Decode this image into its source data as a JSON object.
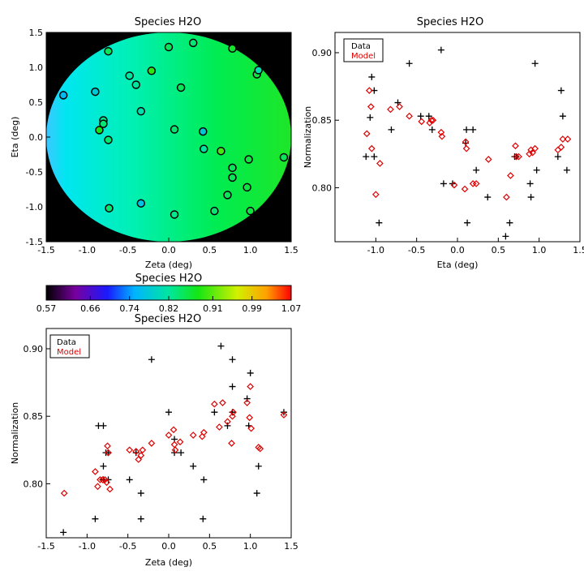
{
  "chart_data": [
    {
      "id": "map",
      "type": "heatmap",
      "title": "Species H2O",
      "xlabel": "Zeta (deg)",
      "ylabel": "Eta (deg)",
      "xlim": [
        -1.5,
        1.5
      ],
      "ylim": [
        -1.5,
        1.5
      ],
      "xticks": [
        "-1.5",
        "-1.0",
        "-0.5",
        "0.0",
        "0.5",
        "1.0",
        "1.5"
      ],
      "yticks": [
        "-1.5",
        "-1.0",
        "-0.5",
        "0.0",
        "0.5",
        "1.0",
        "1.5"
      ],
      "field_radius_deg": 1.5,
      "colorbar": {
        "min": 0.57,
        "max": 1.07,
        "ticks": [
          "0.57",
          "0.66",
          "0.74",
          "0.82",
          "0.91",
          "0.99",
          "1.07"
        ]
      },
      "points": [
        {
          "zeta": -1.29,
          "eta": 0.6,
          "value": 0.76
        },
        {
          "zeta": -0.9,
          "eta": 0.65,
          "value": 0.78
        },
        {
          "zeta": -0.74,
          "eta": 1.23,
          "value": 0.85
        },
        {
          "zeta": -0.8,
          "eta": 0.24,
          "value": 0.83
        },
        {
          "zeta": -0.8,
          "eta": 0.19,
          "value": 0.84
        },
        {
          "zeta": -0.85,
          "eta": 0.1,
          "value": 0.88
        },
        {
          "zeta": -0.74,
          "eta": -0.04,
          "value": 0.84
        },
        {
          "zeta": -0.73,
          "eta": -1.02,
          "value": 0.84
        },
        {
          "zeta": -0.48,
          "eta": 0.88,
          "value": 0.82
        },
        {
          "zeta": -0.4,
          "eta": 0.75,
          "value": 0.82
        },
        {
          "zeta": -0.34,
          "eta": 0.37,
          "value": 0.81
        },
        {
          "zeta": -0.34,
          "eta": -0.95,
          "value": 0.77
        },
        {
          "zeta": -0.21,
          "eta": 0.95,
          "value": 0.89
        },
        {
          "zeta": 0.0,
          "eta": 1.29,
          "value": 0.85
        },
        {
          "zeta": 0.07,
          "eta": 0.11,
          "value": 0.84
        },
        {
          "zeta": 0.07,
          "eta": -1.11,
          "value": 0.83
        },
        {
          "zeta": 0.15,
          "eta": 0.71,
          "value": 0.85
        },
        {
          "zeta": 0.3,
          "eta": 1.35,
          "value": 0.84
        },
        {
          "zeta": 0.42,
          "eta": 0.08,
          "value": 0.78
        },
        {
          "zeta": 0.43,
          "eta": -0.17,
          "value": 0.82
        },
        {
          "zeta": 0.56,
          "eta": -1.06,
          "value": 0.84
        },
        {
          "zeta": 0.64,
          "eta": -0.2,
          "value": 0.9
        },
        {
          "zeta": 0.78,
          "eta": 1.27,
          "value": 0.87
        },
        {
          "zeta": 0.72,
          "eta": -0.83,
          "value": 0.85
        },
        {
          "zeta": 0.78,
          "eta": -0.44,
          "value": 0.85
        },
        {
          "zeta": 0.78,
          "eta": -0.58,
          "value": 0.85
        },
        {
          "zeta": 0.96,
          "eta": -0.72,
          "value": 0.86
        },
        {
          "zeta": 0.98,
          "eta": -0.32,
          "value": 0.86
        },
        {
          "zeta": 1.0,
          "eta": -1.06,
          "value": 0.86
        },
        {
          "zeta": 1.08,
          "eta": 0.9,
          "value": 0.86
        },
        {
          "zeta": 1.1,
          "eta": 0.96,
          "value": 0.81
        },
        {
          "zeta": 1.41,
          "eta": -0.29,
          "value": 0.85
        }
      ]
    },
    {
      "id": "eta",
      "type": "scatter",
      "title": "Species H2O",
      "xlabel": "Eta (deg)",
      "ylabel": "Normalization",
      "xlim": [
        -1.5,
        1.5
      ],
      "ylim": [
        0.76,
        0.915
      ],
      "xticks": [
        "-1.0",
        "-0.5",
        "0.0",
        "0.5",
        "1.0",
        "1.5"
      ],
      "yticks": [
        "0.80",
        "0.85",
        "0.90"
      ],
      "legend": {
        "data": "Data",
        "model": "Model"
      },
      "series": [
        {
          "name": "Data",
          "marker": "plus",
          "x": [
            -1.12,
            -1.07,
            -1.05,
            -1.02,
            -1.02,
            -0.96,
            -0.81,
            -0.73,
            -0.59,
            -0.45,
            -0.35,
            -0.31,
            -0.2,
            -0.17,
            -0.06,
            0.11,
            0.12,
            0.1,
            0.19,
            0.23,
            0.37,
            0.59,
            0.64,
            0.7,
            0.72,
            0.89,
            0.9,
            0.95,
            0.97,
            1.23,
            1.27,
            1.29,
            1.34
          ],
          "y": [
            0.823,
            0.852,
            0.882,
            0.872,
            0.823,
            0.774,
            0.843,
            0.863,
            0.892,
            0.853,
            0.853,
            0.843,
            0.902,
            0.803,
            0.803,
            0.843,
            0.774,
            0.833,
            0.843,
            0.813,
            0.793,
            0.764,
            0.774,
            0.823,
            0.823,
            0.803,
            0.793,
            0.892,
            0.813,
            0.823,
            0.872,
            0.853,
            0.813
          ]
        },
        {
          "name": "Model",
          "marker": "diamond",
          "x": [
            -1.11,
            -1.08,
            -1.06,
            -1.05,
            -1.0,
            -0.95,
            -0.82,
            -0.71,
            -0.59,
            -0.44,
            -0.34,
            -0.32,
            -0.3,
            -0.2,
            -0.19,
            -0.04,
            0.09,
            0.1,
            0.11,
            0.19,
            0.23,
            0.38,
            0.6,
            0.65,
            0.71,
            0.72,
            0.75,
            0.88,
            0.9,
            0.92,
            0.95,
            1.23,
            1.27,
            1.29,
            1.35
          ],
          "y": [
            0.84,
            0.872,
            0.86,
            0.829,
            0.795,
            0.818,
            0.858,
            0.86,
            0.853,
            0.849,
            0.848,
            0.85,
            0.85,
            0.841,
            0.838,
            0.802,
            0.799,
            0.834,
            0.829,
            0.803,
            0.803,
            0.821,
            0.793,
            0.809,
            0.831,
            0.823,
            0.823,
            0.825,
            0.828,
            0.826,
            0.829,
            0.828,
            0.83,
            0.836,
            0.836
          ]
        }
      ]
    },
    {
      "id": "zeta",
      "type": "scatter",
      "title": "Species H2O",
      "xlabel": "Zeta (deg)",
      "ylabel": "Normalization",
      "xlim": [
        -1.5,
        1.5
      ],
      "ylim": [
        0.76,
        0.915
      ],
      "xticks": [
        "-1.5",
        "-1.0",
        "-0.5",
        "0.0",
        "0.5",
        "1.0",
        "1.5"
      ],
      "yticks": [
        "0.80",
        "0.85",
        "0.90"
      ],
      "legend": {
        "data": "Data",
        "model": "Model"
      },
      "series": [
        {
          "name": "Data",
          "marker": "plus",
          "x": [
            -1.29,
            -0.9,
            -0.86,
            -0.8,
            -0.8,
            -0.8,
            -0.77,
            -0.74,
            -0.74,
            -0.48,
            -0.4,
            -0.34,
            -0.34,
            -0.21,
            0.0,
            0.07,
            0.07,
            0.15,
            0.3,
            0.42,
            0.43,
            0.56,
            0.64,
            0.72,
            0.78,
            0.78,
            0.78,
            0.96,
            0.98,
            1.0,
            1.08,
            1.1,
            1.41
          ],
          "y": [
            0.764,
            0.774,
            0.843,
            0.843,
            0.803,
            0.813,
            0.823,
            0.823,
            0.803,
            0.803,
            0.823,
            0.774,
            0.793,
            0.892,
            0.853,
            0.833,
            0.823,
            0.823,
            0.813,
            0.774,
            0.803,
            0.853,
            0.902,
            0.843,
            0.892,
            0.872,
            0.853,
            0.863,
            0.843,
            0.882,
            0.793,
            0.813,
            0.853
          ]
        },
        {
          "name": "Model",
          "marker": "diamond",
          "x": [
            -1.28,
            -0.9,
            -0.87,
            -0.84,
            -0.81,
            -0.78,
            -0.76,
            -0.75,
            -0.74,
            -0.72,
            -0.48,
            -0.4,
            -0.37,
            -0.34,
            -0.32,
            -0.21,
            0.0,
            0.06,
            0.07,
            0.08,
            0.14,
            0.3,
            0.41,
            0.43,
            0.56,
            0.62,
            0.66,
            0.72,
            0.77,
            0.78,
            0.79,
            0.96,
            0.99,
            1.0,
            1.01,
            1.1,
            1.12,
            1.41
          ],
          "y": [
            0.793,
            0.809,
            0.798,
            0.803,
            0.803,
            0.803,
            0.801,
            0.828,
            0.823,
            0.796,
            0.825,
            0.824,
            0.818,
            0.821,
            0.825,
            0.83,
            0.836,
            0.84,
            0.829,
            0.825,
            0.831,
            0.836,
            0.835,
            0.838,
            0.859,
            0.842,
            0.86,
            0.846,
            0.83,
            0.85,
            0.853,
            0.86,
            0.849,
            0.872,
            0.841,
            0.827,
            0.826,
            0.851
          ]
        }
      ]
    }
  ]
}
